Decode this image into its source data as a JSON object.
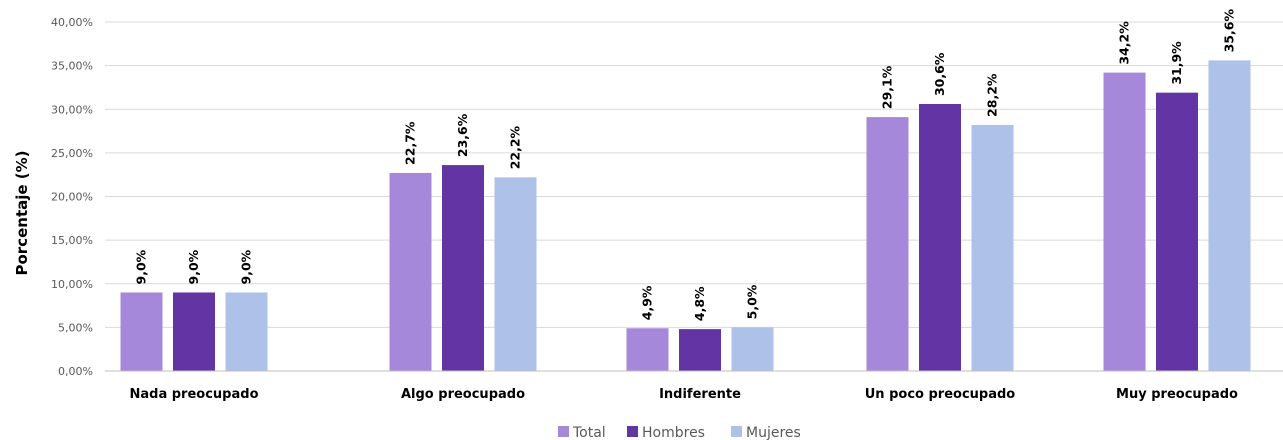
{
  "chart_data": {
    "type": "bar",
    "ylabel": "Porcentaje (%)",
    "xlabel": "",
    "ylim": [
      0,
      40
    ],
    "yticks": [
      "0,00%",
      "5,00%",
      "10,00%",
      "15,00%",
      "20,00%",
      "25,00%",
      "30,00%",
      "35,00%",
      "40,00%"
    ],
    "grid": true,
    "legend_position": "bottom",
    "categories": [
      "Nada preocupado",
      "Algo preocupado",
      "Indiferente",
      "Un poco preocupado",
      "Muy preocupado"
    ],
    "series": [
      {
        "name": "Total",
        "color": "#a688db",
        "values": [
          9.0,
          22.7,
          4.9,
          29.1,
          34.2
        ],
        "labels": [
          "9,0%",
          "22,7%",
          "4,9%",
          "29,1%",
          "34,2%"
        ]
      },
      {
        "name": "Hombres",
        "color": "#6234a4",
        "values": [
          9.0,
          23.6,
          4.8,
          30.6,
          31.9
        ],
        "labels": [
          "9,0%",
          "23,6%",
          "4,8%",
          "30,6%",
          "31,9%"
        ]
      },
      {
        "name": "Mujeres",
        "color": "#aec1e9",
        "values": [
          9.0,
          22.2,
          5.0,
          28.2,
          35.6
        ],
        "labels": [
          "9,0%",
          "22,2%",
          "5,0%",
          "28,2%",
          "35,6%"
        ]
      }
    ]
  }
}
